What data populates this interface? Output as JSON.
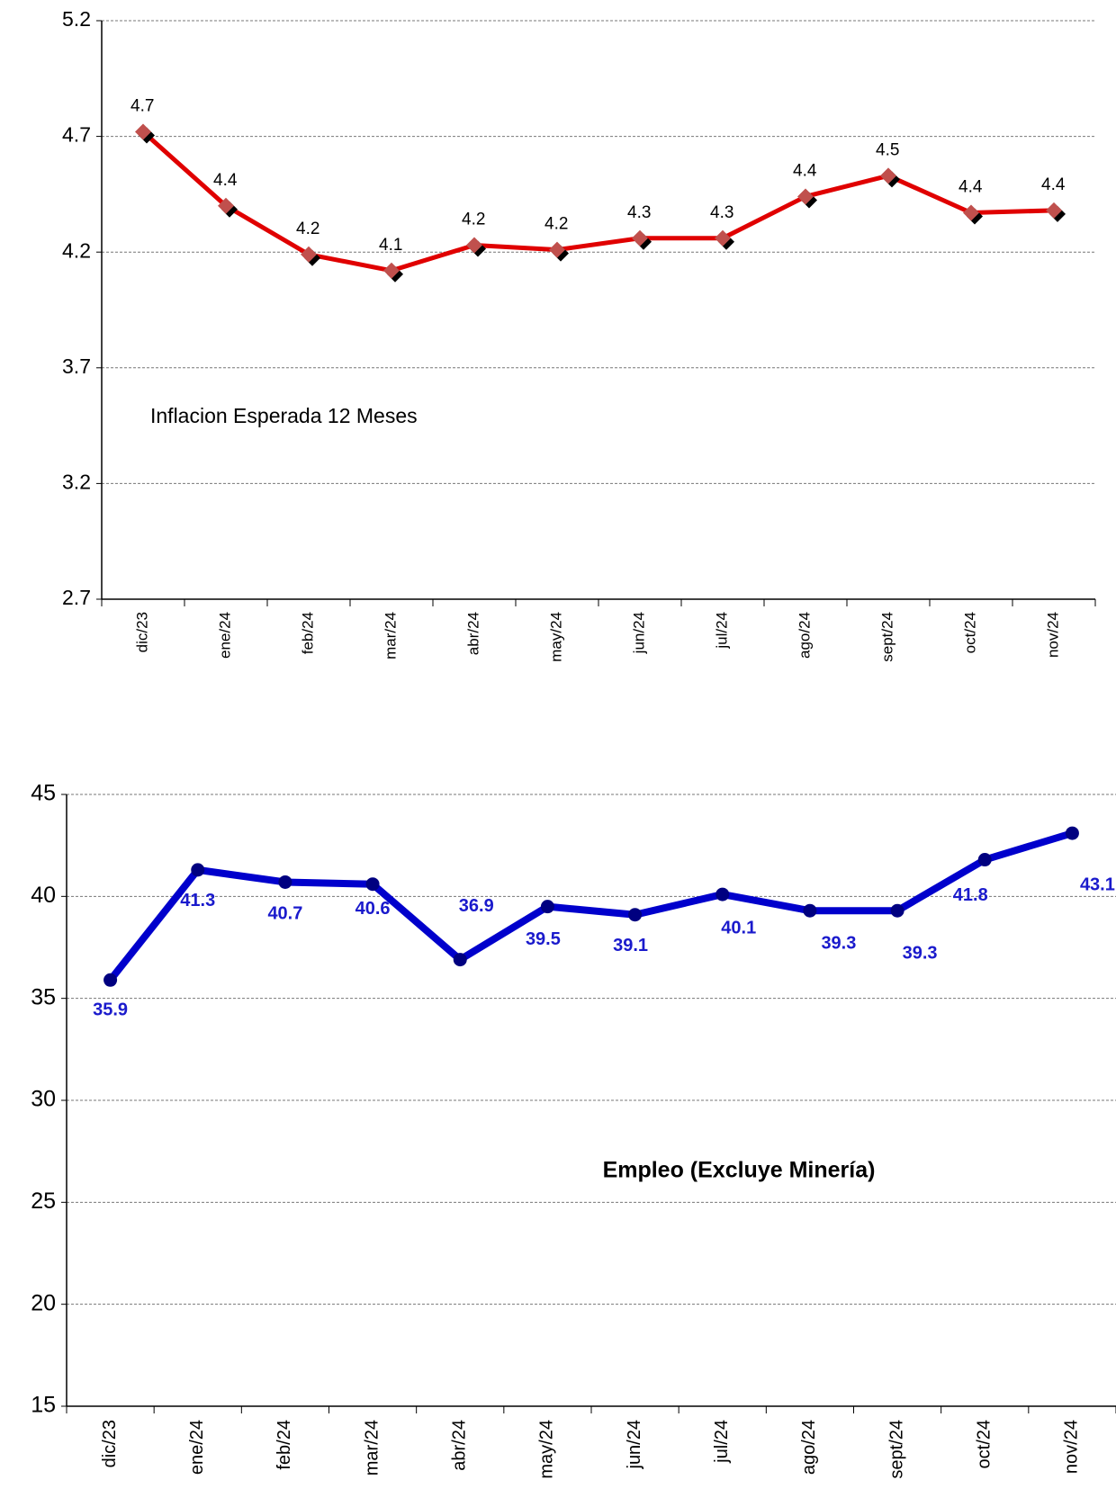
{
  "chart_data": [
    {
      "type": "line",
      "title": "Inflacion Esperada 12 Meses",
      "categories": [
        "dic/23",
        "ene/24",
        "feb/24",
        "mar/24",
        "abr/24",
        "may/24",
        "jun/24",
        "jul/24",
        "ago/24",
        "sept/24",
        "oct/24",
        "nov/24"
      ],
      "values": [
        4.72,
        4.4,
        4.19,
        4.12,
        4.23,
        4.21,
        4.26,
        4.26,
        4.44,
        4.53,
        4.37,
        4.38
      ],
      "value_labels": [
        "4.7",
        "4.4",
        "4.2",
        "4.1",
        "4.2",
        "4.2",
        "4.3",
        "4.3",
        "4.4",
        "4.5",
        "4.4",
        "4.4"
      ],
      "color": "#e00000",
      "marker_color": "#c0504d",
      "ylim": [
        2.7,
        5.2
      ],
      "yticks": [
        2.7,
        3.2,
        3.7,
        4.2,
        4.7,
        5.2
      ],
      "grid": true
    },
    {
      "type": "line",
      "title": "Empleo (Excluye Minería)",
      "categories": [
        "dic/23",
        "ene/24",
        "feb/24",
        "mar/24",
        "abr/24",
        "may/24",
        "jun/24",
        "jul/24",
        "ago/24",
        "sept/24",
        "oct/24",
        "nov/24"
      ],
      "values": [
        35.9,
        41.3,
        40.7,
        40.6,
        36.9,
        39.5,
        39.1,
        40.1,
        39.3,
        39.3,
        41.8,
        43.1
      ],
      "color": "#0000cc",
      "marker_color": "#000080",
      "label_color": "#1a1acc",
      "ylim": [
        15,
        45
      ],
      "yticks": [
        15,
        20,
        25,
        30,
        35,
        40,
        45
      ],
      "grid": true
    }
  ]
}
